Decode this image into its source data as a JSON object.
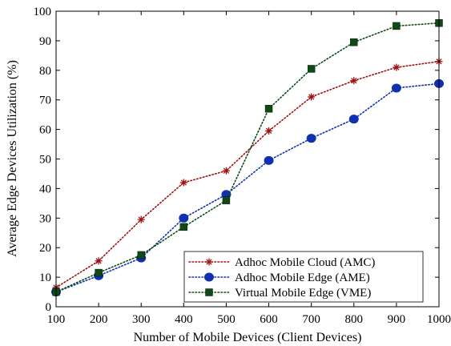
{
  "chart_data": {
    "type": "line",
    "title": "",
    "xlabel": "Number of Mobile Devices (Client Devices)",
    "ylabel": "Average Edge Devices Utilization (%)",
    "x": [
      100,
      200,
      300,
      400,
      500,
      600,
      700,
      800,
      900,
      1000
    ],
    "xlim": [
      100,
      1000
    ],
    "ylim": [
      0,
      100
    ],
    "xticks": [
      "100",
      "200",
      "300",
      "400",
      "500",
      "600",
      "700",
      "800",
      "900",
      "1000"
    ],
    "yticks": [
      "0",
      "10",
      "20",
      "30",
      "40",
      "50",
      "60",
      "70",
      "80",
      "90",
      "100"
    ],
    "grid": false,
    "legend_position": "bottom-right",
    "series": [
      {
        "name": "Adhoc Mobile Cloud (AMC)",
        "color": "#a01010",
        "marker": "asterisk",
        "line": "dotted",
        "values": [
          6.5,
          15.5,
          29.5,
          42,
          46,
          59.5,
          71,
          76.5,
          81,
          83
        ]
      },
      {
        "name": "Adhoc Mobile Edge (AME)",
        "color": "#1030b0",
        "marker": "circle",
        "line": "dotted",
        "values": [
          5,
          10.5,
          16.5,
          30,
          38,
          49.5,
          57,
          63.5,
          74,
          75.5
        ]
      },
      {
        "name": "Virtual Mobile Edge (VME)",
        "color": "#0e4a14",
        "marker": "square",
        "line": "dotted",
        "values": [
          5,
          11.5,
          17.5,
          27,
          36,
          67,
          80.5,
          89.5,
          95,
          96
        ]
      }
    ]
  }
}
